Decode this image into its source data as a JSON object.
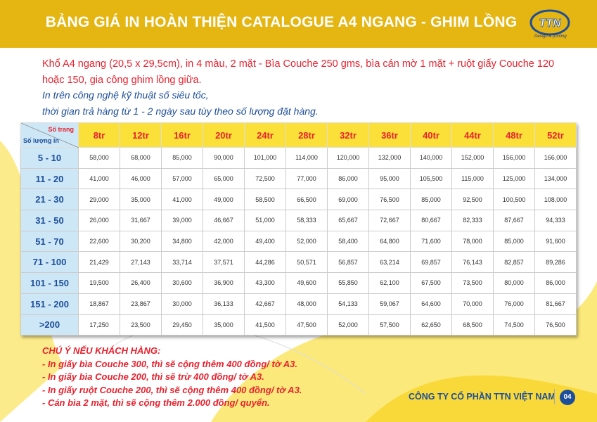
{
  "header": {
    "title": "BẢNG GIÁ IN HOÀN THIỆN CATALOGUE A4 NGANG - GHIM LỒNG",
    "logo_text": "TTN",
    "logo_sub": "Design & printing"
  },
  "description": "Khổ A4 ngang (20,5 x 29,5cm), in 4 màu, 2 mặt - Bìa Couche 250 gms, bìa cán mờ 1 mặt + ruột giấy Couche 120 hoặc 150, gia công ghim lồng giữa.",
  "subtext": [
    "In trên công nghệ kỹ thuật số siêu tốc,",
    "thời gian trả hàng từ 1 - 2 ngày sau tùy theo số lượng đặt hàng."
  ],
  "table": {
    "corner_top": "Số trang",
    "corner_bottom": "Số lượng in",
    "columns": [
      "8tr",
      "12tr",
      "16tr",
      "20tr",
      "24tr",
      "28tr",
      "32tr",
      "36tr",
      "40tr",
      "44tr",
      "48tr",
      "52tr"
    ],
    "rows": [
      {
        "label": "5 - 10",
        "cells": [
          "58,000",
          "68,000",
          "85,000",
          "90,000",
          "101,000",
          "114,000",
          "120,000",
          "132,000",
          "140,000",
          "152,000",
          "156,000",
          "166,000"
        ]
      },
      {
        "label": "11 - 20",
        "cells": [
          "41,000",
          "46,000",
          "57,000",
          "65,000",
          "72,500",
          "77,000",
          "86,000",
          "95,000",
          "105,500",
          "115,000",
          "125,000",
          "134,000"
        ]
      },
      {
        "label": "21 - 30",
        "cells": [
          "29,000",
          "35,000",
          "41,000",
          "49,000",
          "58,500",
          "66,500",
          "69,000",
          "76,500",
          "85,000",
          "92,500",
          "100,500",
          "108,000"
        ]
      },
      {
        "label": "31 - 50",
        "cells": [
          "26,000",
          "31,667",
          "39,000",
          "46,667",
          "51,000",
          "58,333",
          "65,667",
          "72,667",
          "80,667",
          "82,333",
          "87,667",
          "94,333"
        ]
      },
      {
        "label": "51 - 70",
        "cells": [
          "22,600",
          "30,200",
          "34,800",
          "42,000",
          "49,400",
          "52,000",
          "58,400",
          "64,800",
          "71,600",
          "78,000",
          "85,000",
          "91,600"
        ]
      },
      {
        "label": "71 - 100",
        "cells": [
          "21,429",
          "27,143",
          "33,714",
          "37,571",
          "44,286",
          "50,571",
          "56,857",
          "63,214",
          "69,857",
          "76,143",
          "82,857",
          "89,286"
        ]
      },
      {
        "label": "101 - 150",
        "cells": [
          "19,500",
          "26,400",
          "30,600",
          "36,900",
          "43,300",
          "49,600",
          "55,850",
          "62,100",
          "67,500",
          "73,500",
          "80,000",
          "86,000"
        ]
      },
      {
        "label": "151 - 200",
        "cells": [
          "18,867",
          "23,867",
          "30,000",
          "36,133",
          "42,667",
          "48,000",
          "54,133",
          "59,067",
          "64,600",
          "70,000",
          "76,000",
          "81,667"
        ]
      },
      {
        "label": ">200",
        "cells": [
          "17,250",
          "23,500",
          "29,450",
          "35,000",
          "41,500",
          "47,500",
          "52,000",
          "57,500",
          "62,650",
          "68,500",
          "74,500",
          "76,500"
        ]
      }
    ]
  },
  "notes": [
    "CHÚ Ý NẾU KHÁCH HÀNG:",
    "- In giấy bìa Couche 300, thì sẽ cộng thêm 400 đồng/ tờ A3.",
    "- In giấy bìa Couche 200, thì sẽ trừ 400 đồng/ tờ A3.",
    "- In giấy ruột Couche 200, thì sẽ cộng thêm 400 đồng/ tờ  A3.",
    "- Cán bìa 2 mặt, thì sẽ cộng thêm 2.000 đồng/ quyển."
  ],
  "footer": {
    "company": "CÔNG TY CỔ PHẦN TTN VIỆT NAM",
    "page": "04"
  },
  "colors": {
    "header": "#e5b512",
    "accent_red": "#e8222e",
    "blue": "#1d4e9a",
    "table_header": "#fbe03a",
    "row_header": "#cde7f6"
  }
}
